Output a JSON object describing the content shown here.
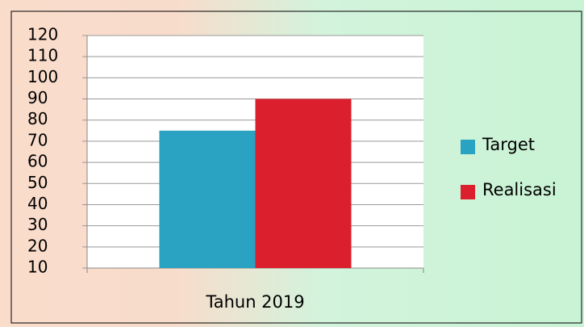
{
  "chart_data": {
    "type": "bar",
    "categories": [
      "Tahun 2019"
    ],
    "series": [
      {
        "name": "Target",
        "color": "#2aa2c2",
        "values": [
          75
        ]
      },
      {
        "name": "Realisasi",
        "color": "#dc1f2c",
        "values": [
          90
        ]
      }
    ],
    "ylim": [
      10,
      120
    ],
    "yticks": [
      10,
      20,
      30,
      40,
      50,
      60,
      70,
      80,
      90,
      100,
      110,
      120
    ],
    "grid": true,
    "legend": "right"
  }
}
